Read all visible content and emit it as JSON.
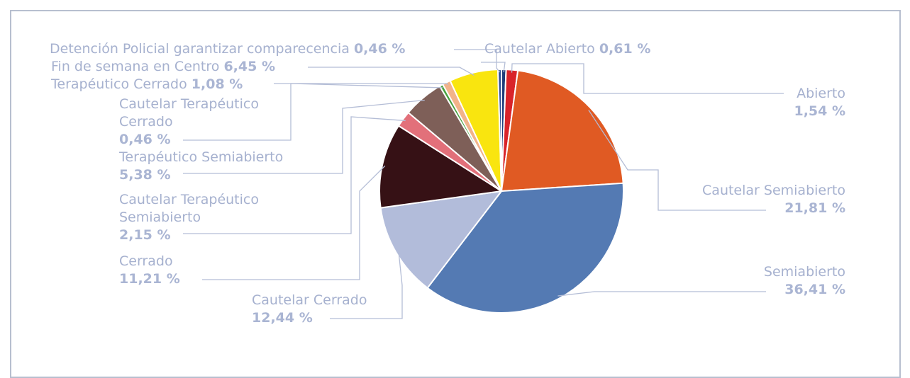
{
  "chart_data": {
    "type": "pie",
    "categories": [
      "Cautelar Abierto",
      "Abierto",
      "Cautelar Semiabierto",
      "Semiabierto",
      "Cautelar Cerrado",
      "Cerrado",
      "Cautelar Terapéutico Semiabierto",
      "Terapéutico Semiabierto",
      "Cautelar Terapéutico Cerrado",
      "Terapéutico Cerrado",
      "Fin de semana en Centro",
      "Detención Policial garantizar comparecencia"
    ],
    "values": [
      0.61,
      1.54,
      21.81,
      36.41,
      12.44,
      11.21,
      2.15,
      5.38,
      0.46,
      1.08,
      6.45,
      0.46
    ],
    "value_labels": [
      "0,61 %",
      "1,54 %",
      "21,81 %",
      "36,41 %",
      "12,44 %",
      "11,21 %",
      "2,15 %",
      "5,38 %",
      "0,46 %",
      "1,08 %",
      "6,45 %",
      "0,46 %"
    ],
    "colors": [
      "#1f3d7a",
      "#d9242a",
      "#e05a23",
      "#547ab3",
      "#b2bcda",
      "#361115",
      "#e2707a",
      "#7e5f58",
      "#48a23f",
      "#f2b38a",
      "#f9e50f",
      "#2b4b95"
    ]
  }
}
